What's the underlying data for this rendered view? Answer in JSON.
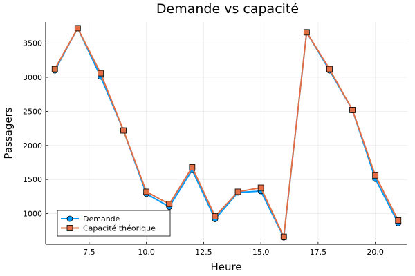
{
  "chart_data": {
    "type": "line",
    "title": "Demande vs capacité",
    "xlabel": "Heure",
    "ylabel": "Passagers",
    "xlim": [
      5.6,
      21.4
    ],
    "ylim": [
      550,
      3810
    ],
    "xticks": [
      7.5,
      10.0,
      12.5,
      15.0,
      17.5,
      20.0
    ],
    "xtick_labels": [
      "7.5",
      "10.0",
      "12.5",
      "15.0",
      "17.5",
      "20.0"
    ],
    "yticks": [
      1000,
      1500,
      2000,
      2500,
      3000,
      3500
    ],
    "ytick_labels": [
      "1000",
      "1500",
      "2000",
      "2500",
      "3000",
      "3500"
    ],
    "grid": true,
    "legend_position": "bottom-left",
    "x": [
      6,
      7,
      8,
      9,
      10,
      11,
      12,
      13,
      14,
      15,
      16,
      17,
      18,
      19,
      20,
      21
    ],
    "series": [
      {
        "name": "Demande",
        "marker": "circle",
        "color": "#009af9",
        "values": [
          3100,
          3720,
          3010,
          2220,
          1290,
          1100,
          1640,
          920,
          1310,
          1330,
          650,
          3660,
          3100,
          2520,
          1510,
          860
        ]
      },
      {
        "name": "Capacité théorique",
        "marker": "square",
        "color": "#e26f46",
        "values": [
          3120,
          3720,
          3060,
          2220,
          1320,
          1140,
          1680,
          960,
          1320,
          1380,
          660,
          3660,
          3120,
          2520,
          1560,
          900
        ]
      }
    ]
  }
}
